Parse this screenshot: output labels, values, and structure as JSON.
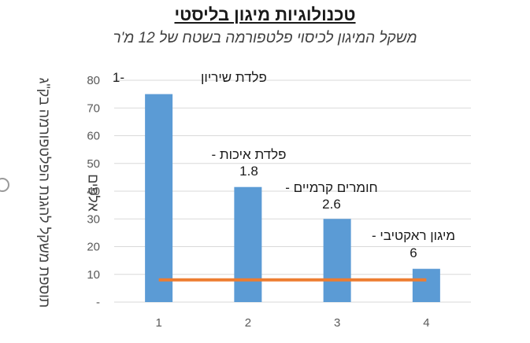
{
  "chart_data": {
    "type": "bar",
    "title": "טכנולוגיות מיגון בליסטי",
    "subtitle": "משקל המיגון לכיסוי פלטפורמה בשטח של 12 מ'ר",
    "ylabel_lines": [
      "תוספת משקל להגנת הפלטפורמה בק\"ג",
      "אלפים"
    ],
    "xlabel": "",
    "categories": [
      "1",
      "2",
      "3",
      "4"
    ],
    "values": [
      75,
      41.5,
      30,
      12
    ],
    "yticks": [
      "-",
      "10",
      "20",
      "30",
      "40",
      "50",
      "60",
      "70",
      "80"
    ],
    "ylim": [
      0,
      80
    ],
    "grid": true,
    "bar_color": "#5b9bd5",
    "line_color": "#ed7d31",
    "line_series": {
      "name": "",
      "values": [
        8,
        8,
        8,
        8
      ]
    },
    "annotations": [
      {
        "name": "פלדת שיריון",
        "value": "1-"
      },
      {
        "name": "פלדת איכות -",
        "value": "1.8"
      },
      {
        "name": "חומרים קרמיים -",
        "value": "2.6"
      },
      {
        "name": "מיגון ראקטיבי -",
        "value": "6"
      }
    ]
  }
}
